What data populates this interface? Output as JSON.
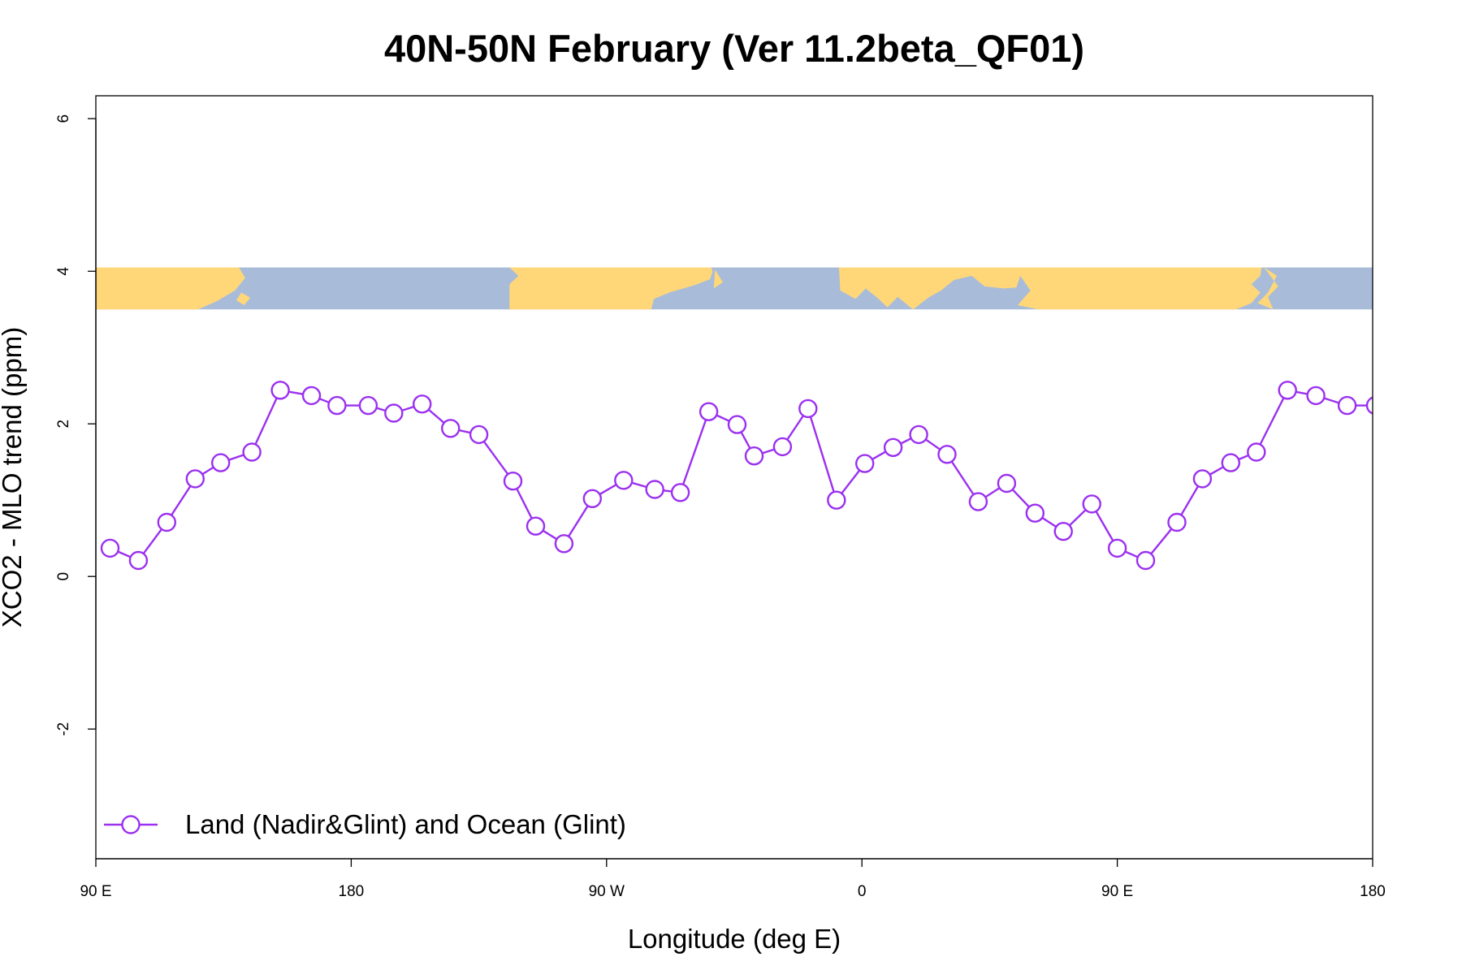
{
  "chart_data": {
    "type": "line",
    "title": "40N-50N February (Ver 11.2beta_QF01)",
    "xlabel": "Longitude (deg E)",
    "ylabel": "XCO2 - MLO trend (ppm)",
    "xlim": [
      90,
      540
    ],
    "ylim": [
      -3.7,
      6.3
    ],
    "x_ticks": [
      {
        "value": 90,
        "label": "90 E"
      },
      {
        "value": 180,
        "label": "180"
      },
      {
        "value": 270,
        "label": "90 W"
      },
      {
        "value": 360,
        "label": "0"
      },
      {
        "value": 450,
        "label": "90 E"
      },
      {
        "value": 540,
        "label": "180"
      }
    ],
    "y_ticks": [
      {
        "value": -2,
        "label": "-2"
      },
      {
        "value": 0,
        "label": "0"
      },
      {
        "value": 2,
        "label": "2"
      },
      {
        "value": 4,
        "label": "4"
      },
      {
        "value": 6,
        "label": "6"
      }
    ],
    "map_strip": {
      "y_range": [
        3.5,
        4.05
      ],
      "land_color": "#FFD778",
      "ocean_color": "#A8BCD9"
    },
    "grid": false,
    "legend_position": "bottom-left",
    "series": [
      {
        "name": "Land (Nadir&Glint) and Ocean (Glint)",
        "color": "#9B30F0",
        "marker": "open-circle",
        "x": [
          95,
          105,
          115,
          125,
          134,
          145,
          155,
          166,
          175,
          186,
          195,
          205,
          215,
          225,
          237,
          245,
          255,
          265,
          276,
          287,
          296,
          306,
          316,
          322,
          332,
          341,
          351,
          361,
          371,
          380,
          390,
          401,
          411,
          421,
          431,
          441,
          450,
          460,
          471,
          480,
          490,
          499,
          510,
          520,
          531,
          541
        ],
        "y": [
          0.37,
          0.21,
          0.71,
          1.28,
          1.49,
          1.63,
          2.44,
          2.37,
          2.24,
          2.24,
          2.14,
          2.26,
          1.94,
          1.86,
          1.25,
          0.66,
          0.43,
          1.02,
          1.26,
          1.14,
          1.1,
          2.16,
          1.99,
          1.58,
          1.7,
          2.2,
          1.0,
          1.48,
          1.69,
          1.86,
          1.6,
          0.98,
          1.22,
          0.83,
          0.59,
          0.95,
          0.37,
          0.21,
          0.71,
          1.28,
          1.49,
          1.63,
          2.44,
          2.37,
          2.24,
          2.24
        ]
      }
    ]
  }
}
